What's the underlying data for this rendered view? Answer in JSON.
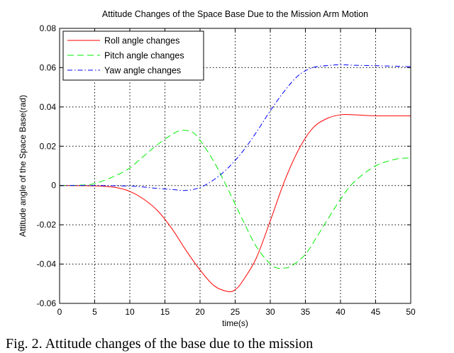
{
  "chart_data": {
    "type": "line",
    "title": "Attitude Changes of the Space Base Due to the Mission Arm Motion",
    "xlabel": "time(s)",
    "ylabel": "Attitude angle of the Space Base(rad)",
    "xlim": [
      0,
      50
    ],
    "ylim": [
      -0.06,
      0.08
    ],
    "xticks": [
      0,
      5,
      10,
      15,
      20,
      25,
      30,
      35,
      40,
      45,
      50
    ],
    "yticks": [
      -0.06,
      -0.04,
      -0.02,
      0,
      0.02,
      0.04,
      0.06,
      0.08
    ],
    "xtick_labels": [
      "0",
      "5",
      "10",
      "15",
      "20",
      "25",
      "30",
      "35",
      "40",
      "45",
      "50"
    ],
    "ytick_labels": [
      "-0.06",
      "-0.04",
      "-0.02",
      "0",
      "0.02",
      "0.04",
      "0.06",
      "0.08"
    ],
    "grid": true,
    "legend_position": "top-left",
    "series": [
      {
        "name": "Roll angle changes",
        "color": "#ff0000",
        "dash": "solid",
        "x": [
          0,
          5,
          8,
          10,
          12,
          14,
          16,
          18,
          20,
          22,
          24,
          25,
          26,
          28,
          30,
          32,
          34,
          36,
          38,
          40,
          42,
          45,
          50
        ],
        "y": [
          0,
          -0.0002,
          -0.001,
          -0.003,
          -0.007,
          -0.013,
          -0.022,
          -0.033,
          -0.043,
          -0.051,
          -0.054,
          -0.053,
          -0.049,
          -0.037,
          -0.018,
          0.002,
          0.018,
          0.029,
          0.034,
          0.036,
          0.036,
          0.0355,
          0.0355
        ]
      },
      {
        "name": "Pitch angle changes",
        "color": "#00ee00",
        "dash": "dashed",
        "x": [
          0,
          3,
          5,
          8,
          10,
          12,
          14,
          16,
          17,
          18,
          19,
          20,
          22,
          24,
          26,
          28,
          30,
          31,
          32,
          33,
          35,
          37,
          40,
          42,
          45,
          48,
          50
        ],
        "y": [
          0,
          0.0002,
          0.001,
          0.005,
          0.009,
          0.015,
          0.021,
          0.026,
          0.0278,
          0.028,
          0.027,
          0.023,
          0.012,
          -0.002,
          -0.017,
          -0.031,
          -0.04,
          -0.042,
          -0.042,
          -0.041,
          -0.035,
          -0.024,
          -0.007,
          0.002,
          0.01,
          0.0135,
          0.014
        ]
      },
      {
        "name": "Yaw angle changes",
        "color": "#0000ff",
        "dash": "dashdot",
        "x": [
          0,
          5,
          10,
          12,
          14,
          16,
          18,
          20,
          22,
          24,
          26,
          28,
          30,
          32,
          34,
          36,
          38,
          40,
          42,
          45,
          50
        ],
        "y": [
          0,
          0,
          -0.0003,
          -0.0008,
          -0.0015,
          -0.002,
          -0.0025,
          -0.001,
          0.003,
          0.009,
          0.017,
          0.027,
          0.038,
          0.048,
          0.056,
          0.06,
          0.061,
          0.0615,
          0.0612,
          0.061,
          0.0605
        ]
      }
    ]
  },
  "caption": "Fig. 2. Attitude changes of the base due to the mission"
}
